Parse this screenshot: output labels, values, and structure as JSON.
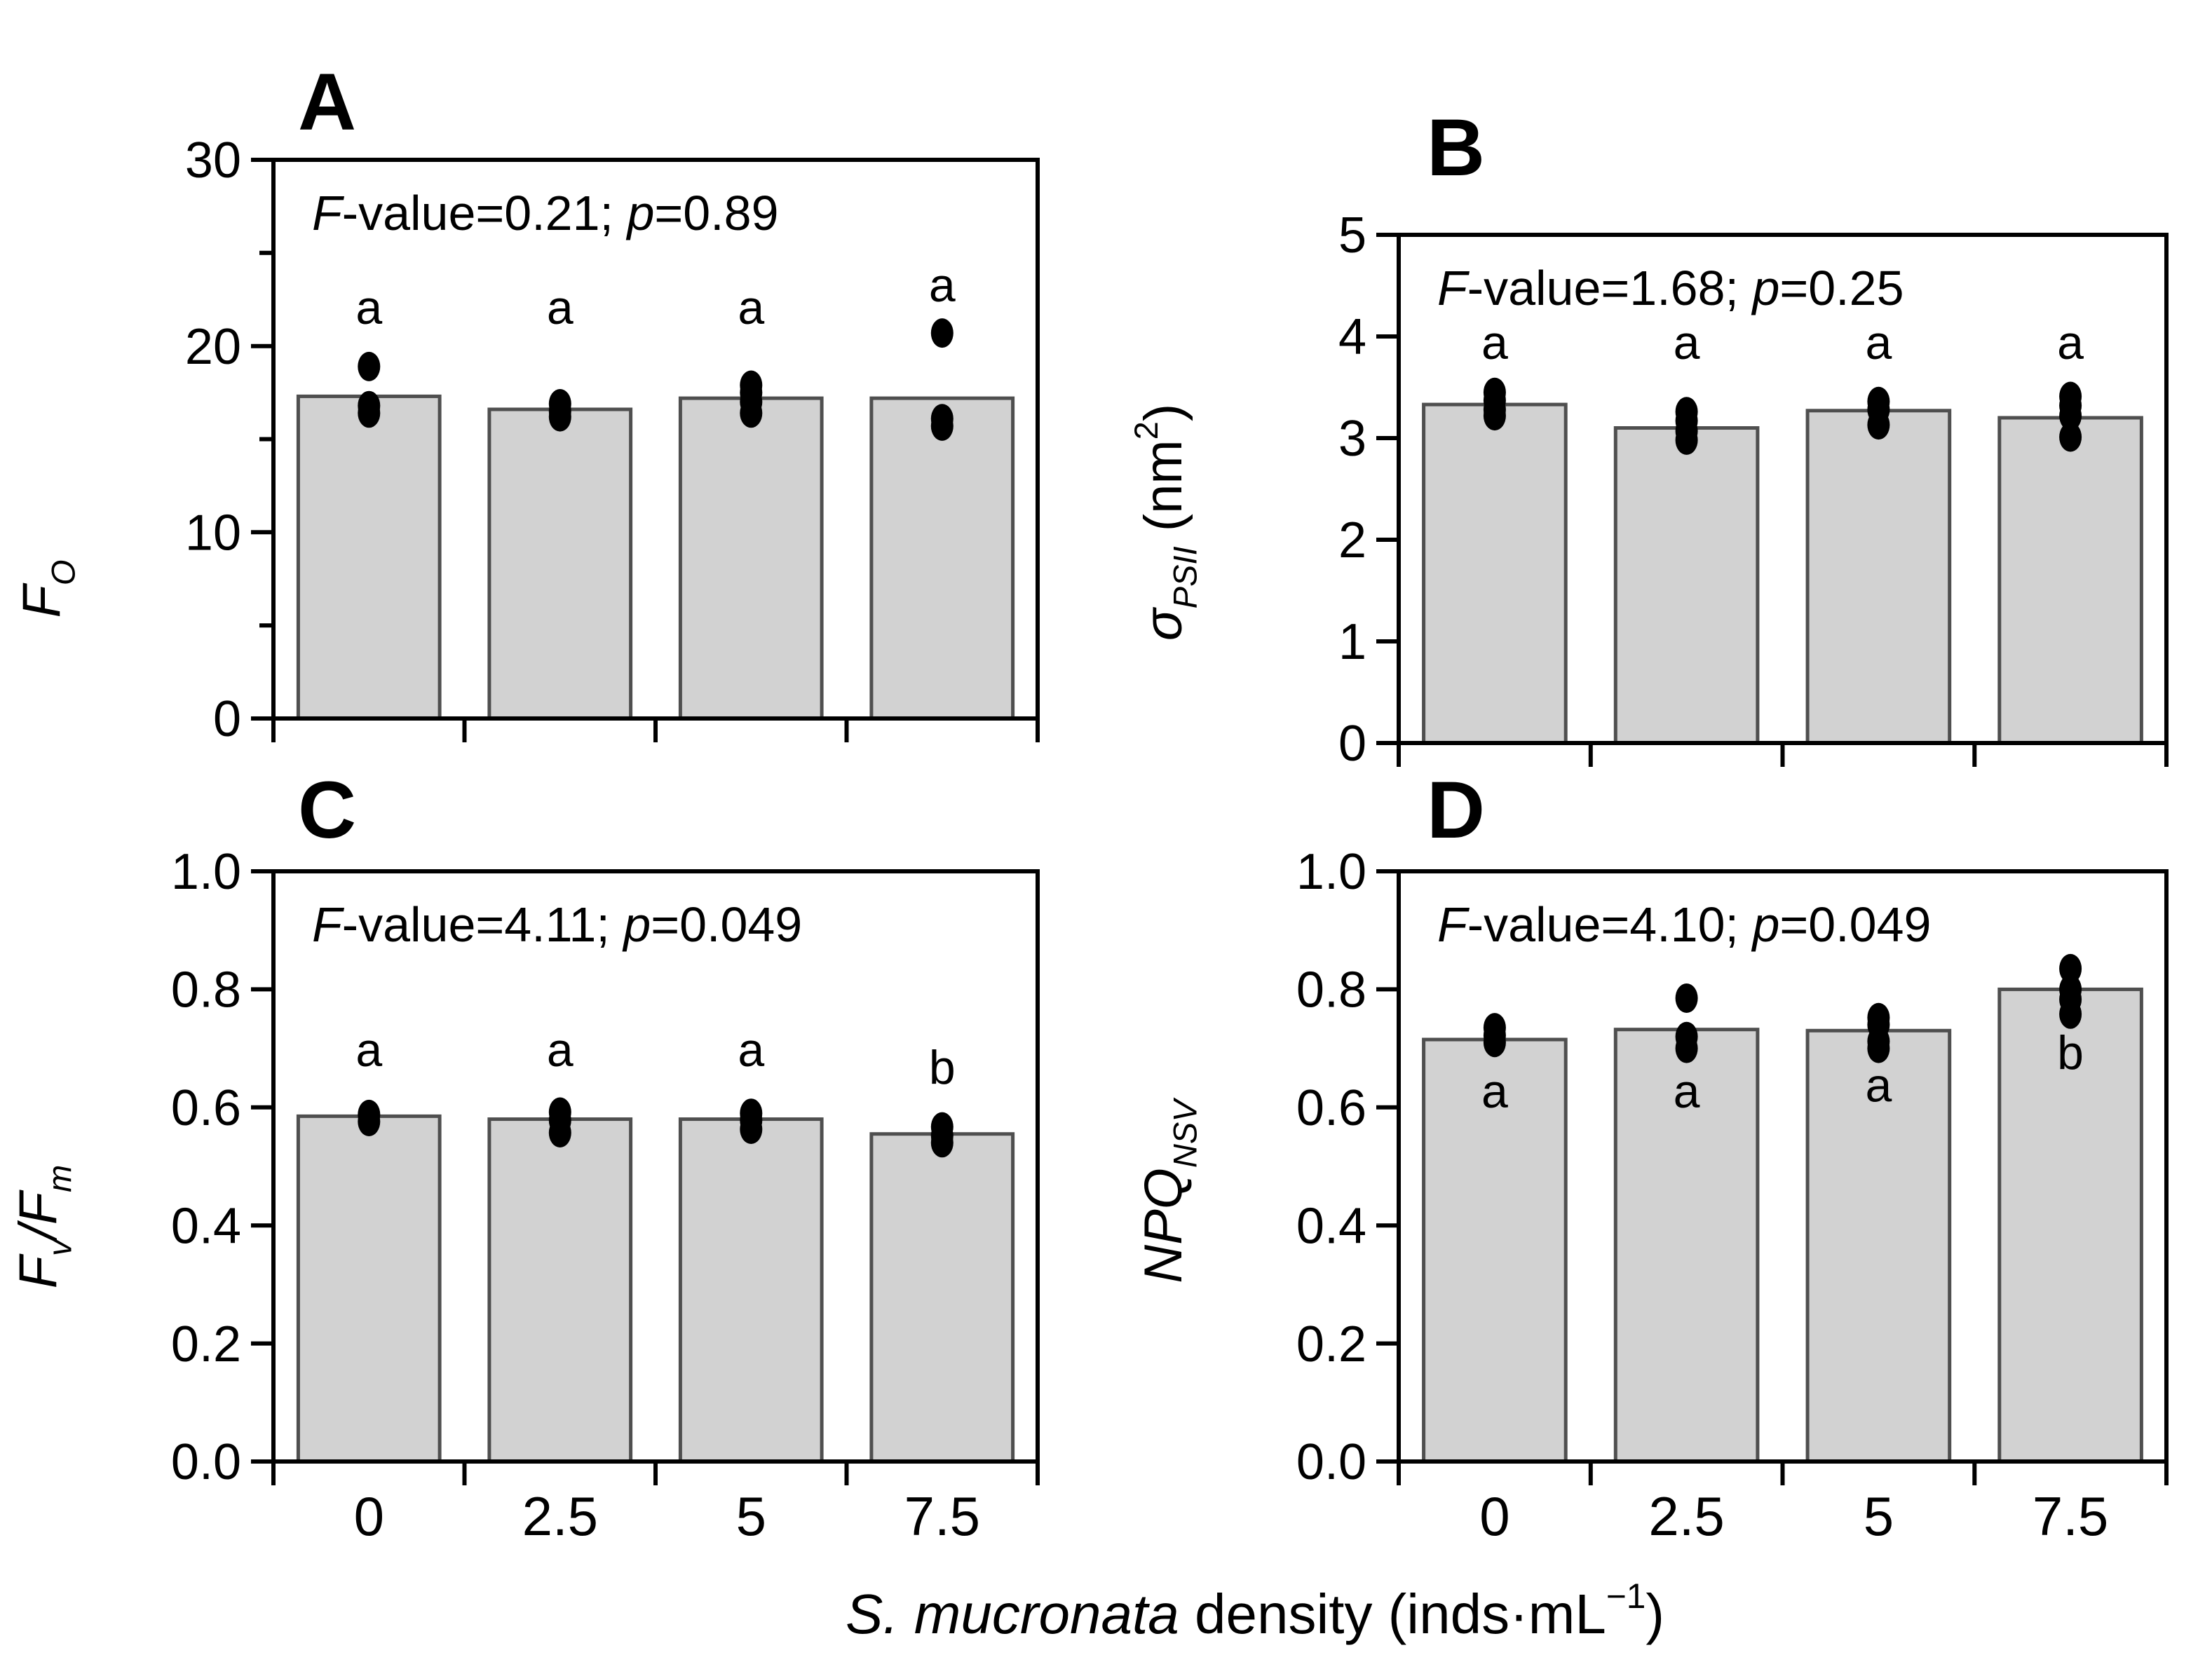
{
  "figure": {
    "background": "#ffffff",
    "bar_fill": "#d2d2d2",
    "bar_stroke": "#4f4f4f",
    "frame_color": "#000000",
    "point_color": "#000000",
    "categories": [
      "0",
      "2.5",
      "5",
      "7.5"
    ],
    "x_axis_title_segments": [
      {
        "t": "S. mucronata",
        "it": 1
      },
      {
        "t": " density (inds·mL"
      },
      {
        "t": "−1",
        "sup": 1
      },
      {
        "t": ")"
      }
    ]
  },
  "chart_data": [
    {
      "type": "bar",
      "panel_label": "A",
      "ylabel_segments": [
        {
          "t": "F",
          "it": 1
        },
        {
          "t": "O",
          "it": 1,
          "sub": 1
        }
      ],
      "ylim": [
        0,
        30
      ],
      "yticks": [
        {
          "v": 0,
          "label": "0"
        },
        {
          "v": 10,
          "label": "10"
        },
        {
          "v": 20,
          "label": "20"
        },
        {
          "v": 30,
          "label": "30"
        }
      ],
      "minor_yticks": [
        5,
        15,
        25
      ],
      "categories": [
        "0",
        "2.5",
        "5",
        "7.5"
      ],
      "values": [
        17.3,
        16.6,
        17.2,
        17.2
      ],
      "points": [
        [
          18.9,
          16.8,
          16.4
        ],
        [
          16.9,
          16.5,
          16.2
        ],
        [
          17.9,
          17.5,
          17.0,
          16.4
        ],
        [
          20.7,
          16.1,
          15.7
        ]
      ],
      "sig_letters": [
        {
          "t": "a",
          "v": 21.2
        },
        {
          "t": "a",
          "v": 21.2
        },
        {
          "t": "a",
          "v": 21.2
        },
        {
          "t": "a",
          "v": 22.4
        }
      ],
      "annotation_segments": [
        {
          "t": "F",
          "it": 1
        },
        {
          "t": "-value=0.21; "
        },
        {
          "t": "p",
          "it": 1
        },
        {
          "t": "=0.89"
        }
      ],
      "show_x_tick_labels": false,
      "grid": false,
      "legend": null
    },
    {
      "type": "bar",
      "panel_label": "B",
      "ylabel_segments": [
        {
          "t": "σ",
          "it": 1
        },
        {
          "t": "PSII",
          "it": 1,
          "sub": 1
        },
        {
          "t": " (nm"
        },
        {
          "t": "2",
          "sup": 1
        },
        {
          "t": ")"
        }
      ],
      "ylim": [
        0,
        5
      ],
      "yticks": [
        {
          "v": 0,
          "label": "0"
        },
        {
          "v": 1,
          "label": "1"
        },
        {
          "v": 2,
          "label": "2"
        },
        {
          "v": 3,
          "label": "3"
        },
        {
          "v": 4,
          "label": "4"
        },
        {
          "v": 5,
          "label": "5"
        }
      ],
      "minor_yticks": [],
      "categories": [
        "0",
        "2.5",
        "5",
        "7.5"
      ],
      "values": [
        3.33,
        3.1,
        3.27,
        3.2
      ],
      "points": [
        [
          3.45,
          3.37,
          3.28,
          3.22
        ],
        [
          3.26,
          3.17,
          3.07,
          2.98
        ],
        [
          3.36,
          3.28,
          3.13
        ],
        [
          3.41,
          3.32,
          3.22,
          3.01
        ]
      ],
      "sig_letters": [
        {
          "t": "a",
          "v": 3.78
        },
        {
          "t": "a",
          "v": 3.78
        },
        {
          "t": "a",
          "v": 3.78
        },
        {
          "t": "a",
          "v": 3.78
        }
      ],
      "annotation_segments": [
        {
          "t": "F",
          "it": 1
        },
        {
          "t": "-value=1.68; "
        },
        {
          "t": "p",
          "it": 1
        },
        {
          "t": "=0.25"
        }
      ],
      "show_x_tick_labels": false,
      "grid": false,
      "legend": null
    },
    {
      "type": "bar",
      "panel_label": "C",
      "ylabel_segments": [
        {
          "t": "F",
          "it": 1
        },
        {
          "t": "v",
          "it": 1,
          "sub": 1
        },
        {
          "t": "/",
          "it": 1
        },
        {
          "t": "F",
          "it": 1
        },
        {
          "t": "m",
          "it": 1,
          "sub": 1
        }
      ],
      "ylim": [
        0,
        1
      ],
      "yticks": [
        {
          "v": 0,
          "label": "0.0"
        },
        {
          "v": 0.2,
          "label": "0.2"
        },
        {
          "v": 0.4,
          "label": "0.4"
        },
        {
          "v": 0.6,
          "label": "0.6"
        },
        {
          "v": 0.8,
          "label": "0.8"
        },
        {
          "v": 1.0,
          "label": "1.0"
        }
      ],
      "minor_yticks": [],
      "categories": [
        "0",
        "2.5",
        "5",
        "7.5"
      ],
      "values": [
        0.585,
        0.58,
        0.58,
        0.555
      ],
      "points": [
        [
          0.588,
          0.576
        ],
        [
          0.592,
          0.578,
          0.557
        ],
        [
          0.59,
          0.578,
          0.563
        ],
        [
          0.567,
          0.552,
          0.54
        ]
      ],
      "sig_letters": [
        {
          "t": "a",
          "v": 0.67
        },
        {
          "t": "a",
          "v": 0.67
        },
        {
          "t": "a",
          "v": 0.67
        },
        {
          "t": "b",
          "v": 0.64
        }
      ],
      "annotation_segments": [
        {
          "t": "F",
          "it": 1
        },
        {
          "t": "-value=4.11; "
        },
        {
          "t": "p",
          "it": 1
        },
        {
          "t": "=0.049"
        }
      ],
      "show_x_tick_labels": true,
      "grid": false,
      "legend": null
    },
    {
      "type": "bar",
      "panel_label": "D",
      "ylabel_segments": [
        {
          "t": "NPQ",
          "it": 1
        },
        {
          "t": "NSV",
          "it": 1,
          "sub": 1
        }
      ],
      "ylim": [
        0,
        1
      ],
      "yticks": [
        {
          "v": 0,
          "label": "0.0"
        },
        {
          "v": 0.2,
          "label": "0.2"
        },
        {
          "v": 0.4,
          "label": "0.4"
        },
        {
          "v": 0.6,
          "label": "0.6"
        },
        {
          "v": 0.8,
          "label": "0.8"
        },
        {
          "v": 1.0,
          "label": "1.0"
        }
      ],
      "minor_yticks": [],
      "categories": [
        "0",
        "2.5",
        "5",
        "7.5"
      ],
      "values": [
        0.715,
        0.732,
        0.73,
        0.8
      ],
      "points": [
        [
          0.735,
          0.722,
          0.71
        ],
        [
          0.785,
          0.72,
          0.7
        ],
        [
          0.752,
          0.74,
          0.712,
          0.7
        ],
        [
          0.835,
          0.8,
          0.783,
          0.758
        ]
      ],
      "sig_letters": [
        {
          "t": "a",
          "v": 0.6,
          "inside": 1
        },
        {
          "t": "a",
          "v": 0.6,
          "inside": 1
        },
        {
          "t": "a",
          "v": 0.61,
          "inside": 1
        },
        {
          "t": "b",
          "v": 0.665,
          "inside": 1
        }
      ],
      "annotation_segments": [
        {
          "t": "F",
          "it": 1
        },
        {
          "t": "-value=4.10; "
        },
        {
          "t": "p",
          "it": 1
        },
        {
          "t": "=0.049"
        }
      ],
      "show_x_tick_labels": true,
      "grid": false,
      "legend": null
    }
  ]
}
